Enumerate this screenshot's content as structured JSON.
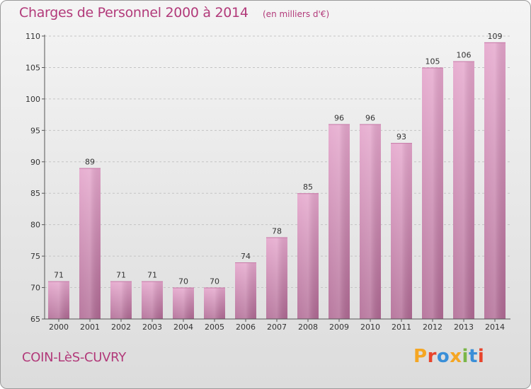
{
  "header": {
    "title": "Charges de Personnel 2000 à 2014",
    "subtitle": "(en milliers d'€)"
  },
  "footer": {
    "commune": "COIN-LèS-CUVRY",
    "logo_text": "Proxiti",
    "logo_colors": [
      "#f5a623",
      "#e8442c",
      "#3a8fd8",
      "#f5a623",
      "#7ab648",
      "#3a8fd8",
      "#e8442c"
    ]
  },
  "chart_data": {
    "type": "bar",
    "categories": [
      "2000",
      "2001",
      "2002",
      "2003",
      "2004",
      "2005",
      "2006",
      "2007",
      "2008",
      "2009",
      "2010",
      "2011",
      "2012",
      "2013",
      "2014"
    ],
    "values": [
      71,
      89,
      71,
      71,
      70,
      70,
      74,
      78,
      85,
      96,
      96,
      93,
      105,
      106,
      109
    ],
    "title": "Charges de Personnel 2000 à 2014",
    "ylim": [
      65,
      110
    ],
    "yticks": [
      65,
      70,
      75,
      80,
      85,
      90,
      95,
      100,
      105,
      110
    ],
    "grid": true,
    "bar_color": "#d98bb9"
  }
}
